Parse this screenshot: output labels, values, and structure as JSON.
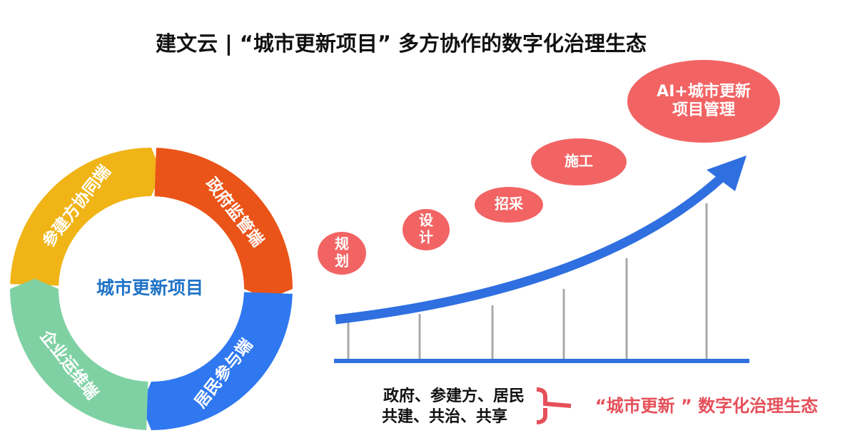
{
  "title": "建文云 |  “城市更新项目”  多方协作的数字化治理生态",
  "cycle": {
    "center": "城市更新项目",
    "segments": [
      "参建方协同端",
      "政府监管端",
      "居民参与端",
      "企业运维端"
    ]
  },
  "stages": [
    {
      "lines": [
        "规",
        "划"
      ]
    },
    {
      "lines": [
        "设",
        "计"
      ]
    },
    {
      "lines": [
        "招采"
      ]
    },
    {
      "lines": [
        "施工"
      ]
    },
    {
      "lines": [
        "AI+城市更新",
        "项目管理"
      ]
    }
  ],
  "bottom": {
    "lines": [
      "政府、参建方、居民",
      "共建、共治、共享"
    ],
    "slogan": "“城市更新 ”  数字化治理生态"
  }
}
